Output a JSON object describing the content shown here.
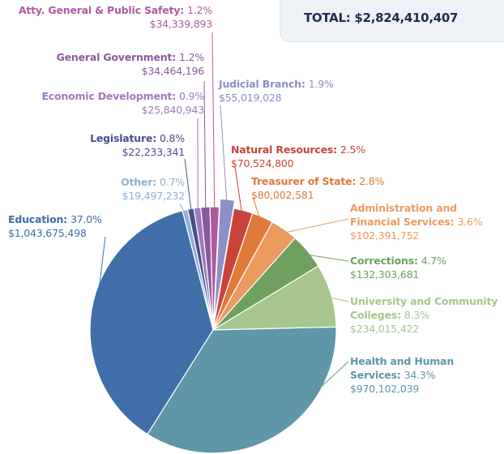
{
  "chart_data": {
    "type": "pie",
    "total_label": "TOTAL:",
    "total": "$2,824,410,407",
    "categories": [
      "Judicial Branch:",
      "Natural Resources:",
      "Treasurer of State:",
      "Administration and Financial Services:",
      "Corrections:",
      "University and Community Colleges:",
      "Health and Human Services:",
      "Education:",
      "Other:",
      "Legislature:",
      "Economic Development:",
      "General Government:",
      "Atty. General & Public Safety:"
    ],
    "values": [
      1.9,
      2.5,
      2.8,
      3.6,
      4.7,
      8.3,
      34.3,
      37.0,
      0.7,
      0.8,
      0.9,
      1.2,
      1.2
    ],
    "value_labels": [
      "1.9%",
      "2.5%",
      "2.8%",
      "3.6%",
      "4.7%",
      "8.3%",
      "34.3%",
      "37.0%",
      "0.7%",
      "0.8%",
      "0.9%",
      "1.2%",
      "1.2%"
    ],
    "amounts": [
      "$55,019,028",
      "$70,524,800",
      "$80,002,581",
      "$102,391,752",
      "$132,303,681",
      "$234,015,422",
      "$970,102,039",
      "$1,043,675,498",
      "$19,497,232",
      "$22,233,341",
      "$25,840,943",
      "$34,464,196",
      "$34,339,893"
    ],
    "colors": [
      "#8d8fc8",
      "#c8443a",
      "#e07a3a",
      "#eb9a60",
      "#6fa060",
      "#a6c68e",
      "#5f96a8",
      "#3f6ea8",
      "#8fb0d8",
      "#4a4f8a",
      "#a07ab8",
      "#8a5a9a",
      "#b05aa0"
    ]
  }
}
